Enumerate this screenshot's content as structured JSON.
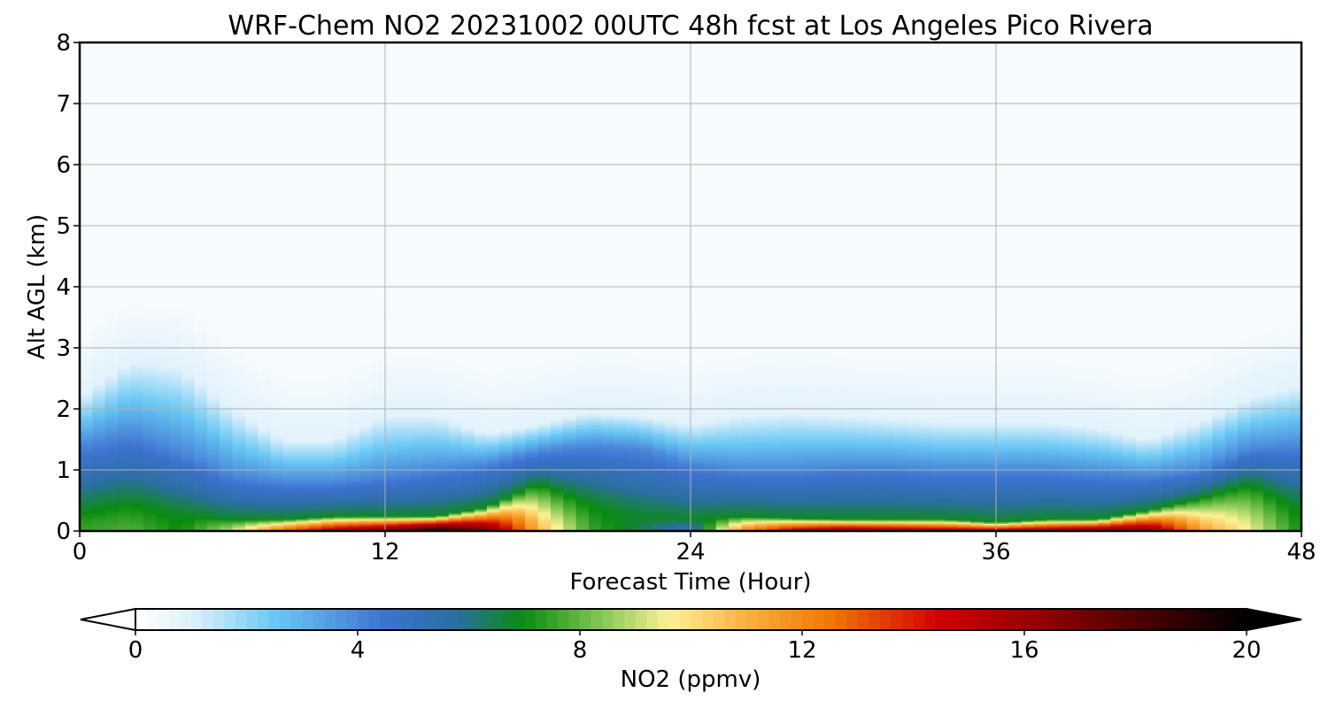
{
  "chart_data": {
    "type": "heatmap",
    "title": "WRF-Chem NO2  20231002 00UTC 48h fcst at Los Angeles Pico Rivera",
    "xlabel": "Forecast Time (Hour)",
    "ylabel": "Alt AGL (km)",
    "xlim": [
      0,
      48
    ],
    "ylim": [
      0,
      8
    ],
    "x_ticks": [
      0,
      12,
      24,
      36,
      48
    ],
    "y_ticks": [
      0,
      1,
      2,
      3,
      4,
      5,
      6,
      7,
      8
    ],
    "grid": true,
    "x": [
      0,
      2,
      4,
      6,
      8,
      10,
      12,
      14,
      16,
      18,
      20,
      22,
      24,
      26,
      28,
      30,
      32,
      34,
      36,
      38,
      40,
      42,
      44,
      46,
      48
    ],
    "y": [
      0,
      0.1,
      0.2,
      0.3,
      0.4,
      0.5,
      0.6,
      0.7,
      0.8,
      0.9,
      1.0,
      1.25,
      1.5,
      1.75,
      2.0,
      2.5,
      3.0,
      4.0,
      6.0,
      8.0
    ],
    "profile_peak_ppmv": [
      7.5,
      7.8,
      7.0,
      9.0,
      13.0,
      15.5,
      17.0,
      19.5,
      17.0,
      11.0,
      7.6,
      6.5,
      5.0,
      12.0,
      15.0,
      16.5,
      16.0,
      15.5,
      15.5,
      16.0,
      17.0,
      16.5,
      11.5,
      9.5,
      7.0
    ],
    "surface_layer_depth_km": [
      0.35,
      0.5,
      0.3,
      0.2,
      0.2,
      0.25,
      0.25,
      0.25,
      0.4,
      0.8,
      0.5,
      0.25,
      0.2,
      0.25,
      0.22,
      0.2,
      0.2,
      0.2,
      0.15,
      0.2,
      0.2,
      0.35,
      0.55,
      0.8,
      0.4
    ],
    "mixing_depth_km": [
      1.4,
      1.6,
      1.3,
      0.9,
      0.8,
      0.8,
      0.9,
      1.0,
      1.1,
      1.3,
      1.4,
      1.35,
      1.1,
      1.0,
      1.0,
      1.05,
      1.05,
      1.0,
      1.0,
      1.0,
      0.95,
      0.9,
      1.0,
      1.35,
      1.4
    ],
    "plume_top_km": [
      2.2,
      2.8,
      2.7,
      2.0,
      1.5,
      1.5,
      1.9,
      1.9,
      1.6,
      1.75,
      1.95,
      1.9,
      1.75,
      1.9,
      1.95,
      1.9,
      1.85,
      1.8,
      1.8,
      1.8,
      1.7,
      1.5,
      1.8,
      2.2,
      2.4
    ],
    "colorbar": {
      "label": "NO2  (ppmv)",
      "min": 0,
      "max": 20,
      "extend": "both",
      "ticks": [
        0,
        4,
        8,
        12,
        16,
        20
      ],
      "stops": [
        {
          "v": 0,
          "c": "#ffffff"
        },
        {
          "v": 1,
          "c": "#dff1fb"
        },
        {
          "v": 2.5,
          "c": "#6ac8f4"
        },
        {
          "v": 4.5,
          "c": "#3d72d0"
        },
        {
          "v": 5.8,
          "c": "#2b6fa0"
        },
        {
          "v": 7.0,
          "c": "#0a8c10"
        },
        {
          "v": 8.5,
          "c": "#8fcb5a"
        },
        {
          "v": 9.6,
          "c": "#fdf296"
        },
        {
          "v": 11.0,
          "c": "#fbb040"
        },
        {
          "v": 12.5,
          "c": "#f07800"
        },
        {
          "v": 14.5,
          "c": "#cf0000"
        },
        {
          "v": 16.5,
          "c": "#8b0000"
        },
        {
          "v": 20,
          "c": "#000000"
        }
      ]
    }
  }
}
